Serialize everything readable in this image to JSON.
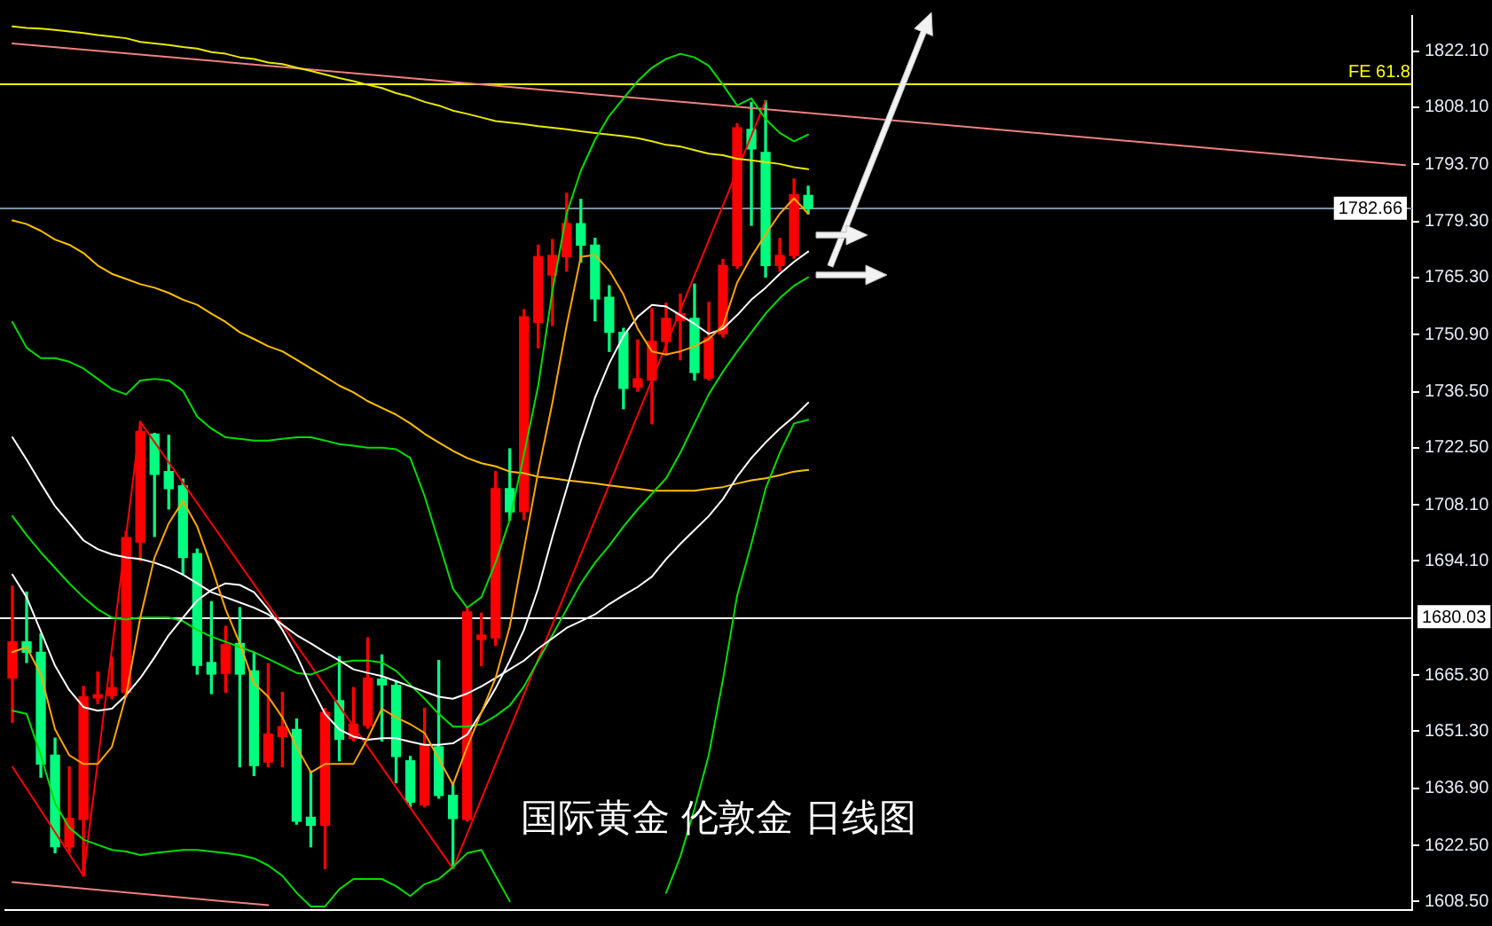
{
  "chart_data": {
    "type": "candlestick",
    "title": "国际黄金 伦敦金 日线图",
    "categories": [
      null,
      null,
      null,
      null,
      null,
      null,
      null,
      null,
      null,
      null,
      null,
      null,
      null,
      null,
      null,
      null,
      null,
      null,
      null,
      null,
      null,
      null,
      null,
      null,
      null,
      null,
      null,
      null,
      null,
      null,
      null,
      null,
      null,
      null,
      null,
      null,
      null,
      null,
      null,
      null,
      null,
      null,
      null,
      null,
      null,
      null,
      null,
      null,
      null,
      null,
      null,
      null,
      null,
      null,
      null,
      null,
      null,
      null,
      null,
      null,
      null,
      null,
      null,
      null,
      null,
      null,
      null,
      null,
      null,
      null,
      null,
      null,
      null,
      null,
      null,
      null,
      null,
      null,
      null,
      null,
      null,
      null,
      null,
      null,
      null,
      null,
      null,
      null,
      null,
      null,
      null,
      null,
      null,
      null,
      null,
      null,
      null,
      null,
      null
    ],
    "ohlc": [
      [
        1664.6,
        1687.7,
        1653.5,
        1673.7
      ],
      [
        1673.7,
        1686.2,
        1668.5,
        1671.1
      ],
      [
        1671.1,
        1675.7,
        1639.7,
        1643.0
      ],
      [
        1645.2,
        1649.5,
        1620.7,
        1622.2
      ],
      [
        1622.2,
        1642.3,
        1620.7,
        1629.3
      ],
      [
        1629.1,
        1662.5,
        1614.9,
        1659.9
      ],
      [
        1659.6,
        1666.1,
        1658.2,
        1660.4
      ],
      [
        1660.2,
        1669.8,
        1659.4,
        1662.2
      ],
      [
        1661.0,
        1701.4,
        1659.9,
        1699.9
      ],
      [
        1698.8,
        1729.0,
        1694.1,
        1726.6
      ],
      [
        1725.9,
        1726.1,
        1700.2,
        1715.8
      ],
      [
        1716.5,
        1725.6,
        1707.1,
        1712.2
      ],
      [
        1712.9,
        1714.6,
        1690.6,
        1694.9
      ],
      [
        1695.9,
        1697.0,
        1665.6,
        1667.8
      ],
      [
        1668.5,
        1683.8,
        1660.7,
        1665.6
      ],
      [
        1665.8,
        1677.6,
        1661.0,
        1673.0
      ],
      [
        1673.3,
        1682.3,
        1642.3,
        1665.6
      ],
      [
        1666.4,
        1671.1,
        1640.1,
        1642.6
      ],
      [
        1643.5,
        1668.2,
        1642.3,
        1650.5
      ],
      [
        1649.9,
        1661.0,
        1642.3,
        1652.4
      ],
      [
        1651.7,
        1654.3,
        1627.9,
        1628.6
      ],
      [
        1629.6,
        1641.2,
        1622.2,
        1627.6
      ],
      [
        1627.6,
        1657.0,
        1616.7,
        1656.0
      ],
      [
        1658.9,
        1670.0,
        1643.8,
        1649.2
      ],
      [
        1649.5,
        1662.2,
        1648.8,
        1653.0
      ],
      [
        1652.7,
        1674.7,
        1652.0,
        1664.6
      ],
      [
        1664.3,
        1670.4,
        1648.8,
        1662.9
      ],
      [
        1662.8,
        1663.9,
        1638.3,
        1644.9
      ],
      [
        1643.8,
        1644.9,
        1632.2,
        1633.4
      ],
      [
        1632.7,
        1657.0,
        1632.2,
        1647.8
      ],
      [
        1647.3,
        1669.0,
        1634.4,
        1635.1
      ],
      [
        1635.1,
        1638.0,
        1616.7,
        1629.3
      ],
      [
        1629.1,
        1682.3,
        1628.6,
        1681.2
      ],
      [
        1674.3,
        1680.9,
        1667.7,
        1675.4
      ],
      [
        1674.7,
        1716.5,
        1672.8,
        1712.2
      ],
      [
        1712.2,
        1722.2,
        1704.3,
        1706.4
      ],
      [
        1706.4,
        1757.2,
        1704.4,
        1755.4
      ],
      [
        1754.0,
        1773.4,
        1747.6,
        1770.5
      ],
      [
        1765.9,
        1774.8,
        1753.2,
        1770.8
      ],
      [
        1770.5,
        1786.4,
        1766.9,
        1778.8
      ],
      [
        1778.8,
        1784.9,
        1769.1,
        1773.4
      ],
      [
        1773.4,
        1775.1,
        1754.4,
        1759.9
      ],
      [
        1760.3,
        1763.2,
        1746.7,
        1751.5
      ],
      [
        1751.5,
        1752.5,
        1732.3,
        1737.4
      ],
      [
        1737.7,
        1749.6,
        1736.7,
        1739.8
      ],
      [
        1739.5,
        1757.5,
        1728.5,
        1749.2
      ],
      [
        1749.2,
        1758.8,
        1746.0,
        1755.0
      ],
      [
        1754.5,
        1761.1,
        1744.6,
        1756.2
      ],
      [
        1755.0,
        1763.6,
        1739.5,
        1741.4
      ],
      [
        1740.0,
        1759.0,
        1739.5,
        1750.1
      ],
      [
        1751.1,
        1769.8,
        1750.3,
        1768.3
      ],
      [
        1768.3,
        1803.9,
        1767.6,
        1802.9
      ],
      [
        1802.5,
        1809.3,
        1778.4,
        1797.6
      ],
      [
        1796.7,
        1809.7,
        1765.4,
        1768.3
      ],
      [
        1768.3,
        1775.1,
        1766.9,
        1770.8
      ],
      [
        1770.8,
        1790.0,
        1770.1,
        1786.1
      ],
      [
        1785.9,
        1788.2,
        1781.3,
        1782.66
      ],
      null,
      null,
      null,
      null,
      null,
      null,
      null,
      null,
      null,
      null,
      null,
      null,
      null,
      null,
      null,
      null,
      null,
      null,
      null,
      null,
      null,
      null,
      null,
      null,
      null,
      null,
      null,
      null,
      null,
      null,
      null,
      null,
      null,
      null,
      null,
      null,
      null,
      null,
      null,
      null,
      null,
      null
    ],
    "colors": [
      "#ff0000",
      "#00ff7f",
      "#00ff7f",
      "#00ff7f",
      "#ff0000",
      "#ff0000",
      "#ff0000",
      "#ff0000",
      "#ff0000",
      "#ff0000",
      "#00ff7f",
      "#00ff7f",
      "#00ff7f",
      "#00ff7f",
      "#00ff7f",
      "#ff0000",
      "#00ff7f",
      "#00ff7f",
      "#ff0000",
      "#ff0000",
      "#00ff7f",
      "#00ff7f",
      "#ff0000",
      "#00ff7f",
      "#ff0000",
      "#ff0000",
      "#00ff7f",
      "#00ff7f",
      "#00ff7f",
      "#ff0000",
      "#00ff7f",
      "#00ff7f",
      "#ff0000",
      "#ff0000",
      "#ff0000",
      "#00ff7f",
      "#ff0000",
      "#ff0000",
      "#ff0000",
      "#ff0000",
      "#00ff7f",
      "#00ff7f",
      "#00ff7f",
      "#00ff7f",
      "#ff0000",
      "#ff0000",
      "#ff0000",
      "#ff0000",
      "#00ff7f",
      "#ff0000",
      "#ff0000",
      "#ff0000",
      "#00ff7f",
      "#00ff7f",
      "#ff0000",
      "#ff0000",
      "#00ff7f",
      null,
      null,
      null,
      null,
      null,
      null,
      null,
      null,
      null,
      null,
      null,
      null,
      null,
      null,
      null,
      null,
      null,
      null,
      null,
      null,
      null,
      null,
      null,
      null,
      null,
      null,
      null,
      null,
      null,
      null,
      null,
      null,
      null,
      null,
      null,
      null,
      null,
      null,
      null,
      null,
      null,
      null
    ],
    "series": [
      {
        "type": "line",
        "color": "#ffa500",
        "values": [
          1671.1,
          1672.4,
          1665.5,
          1651.7,
          1645.2,
          1643.0,
          1643.0,
          1647.3,
          1660.3,
          1679.8,
          1694.9,
          1703.5,
          1709.1,
          1702.7,
          1692.7,
          1681.9,
          1673.3,
          1663.3,
          1659.9,
          1654.7,
          1647.3,
          1640.9,
          1643.0,
          1643.0,
          1643.0,
          1649.5,
          1656.9,
          1654.7,
          1653.0,
          1650.8,
          1644.3,
          1637.8,
          1647.3,
          1656.0,
          1664.6,
          1677.6,
          1697.0,
          1716.5,
          1733.8,
          1753.2,
          1770.5,
          1770.9,
          1767.0,
          1761.0,
          1752.4,
          1746.7,
          1745.9,
          1746.7,
          1748.0,
          1749.8,
          1753.2,
          1764.0,
          1770.5,
          1776.1,
          1781.3,
          1785.2,
          1781.3,
          null,
          null,
          null,
          null,
          null,
          null,
          null,
          null,
          null,
          null,
          null,
          null,
          null,
          null,
          null,
          null,
          null,
          null,
          null,
          null,
          null,
          null,
          null,
          null,
          null,
          null,
          null,
          null,
          null,
          null,
          null,
          null,
          null,
          null,
          null,
          null,
          null,
          null,
          null,
          null,
          null,
          null
        ]
      },
      {
        "type": "line",
        "color": "#ffffff",
        "values": [
          1690.6,
          1684.9,
          1676.3,
          1667.7,
          1661.6,
          1657.3,
          1656.4,
          1656.9,
          1660.3,
          1664.6,
          1669.8,
          1675.4,
          1679.8,
          1684.1,
          1686.7,
          1688.4,
          1688.0,
          1686.2,
          1681.9,
          1676.7,
          1670.3,
          1662.5,
          1655.6,
          1651.7,
          1649.9,
          1649.1,
          1649.5,
          1649.5,
          1648.6,
          1647.8,
          1647.8,
          1648.2,
          1650.4,
          1656.0,
          1662.0,
          1669.0,
          1676.7,
          1687.1,
          1700.1,
          1712.2,
          1724.3,
          1735.1,
          1743.7,
          1750.6,
          1755.4,
          1758.4,
          1758.0,
          1755.8,
          1753.6,
          1751.1,
          1752.4,
          1755.8,
          1759.7,
          1762.7,
          1766.2,
          1769.2,
          1771.8,
          null,
          null,
          null,
          null,
          null,
          null,
          null,
          null,
          null,
          null,
          null,
          null,
          null,
          null,
          null,
          null,
          null,
          null,
          null,
          null,
          null,
          null,
          null,
          null,
          null,
          null,
          null,
          null,
          null,
          null,
          null,
          null,
          null,
          null,
          null,
          null,
          null,
          null,
          null,
          null,
          null,
          null
        ]
      },
      {
        "type": "line",
        "color": "#ffffff",
        "values": [
          1725.1,
          1719.5,
          1713.5,
          1707.8,
          1703.5,
          1699.2,
          1697.0,
          1695.7,
          1694.9,
          1694.5,
          1693.6,
          1692.3,
          1690.6,
          1688.4,
          1686.2,
          1684.9,
          1683.6,
          1682.3,
          1680.6,
          1678.0,
          1675.4,
          1673.3,
          1671.1,
          1669.0,
          1666.8,
          1665.9,
          1665.1,
          1663.8,
          1662.5,
          1661.2,
          1659.9,
          1659.4,
          1660.7,
          1662.5,
          1664.6,
          1666.8,
          1669.0,
          1672.0,
          1674.6,
          1677.2,
          1678.9,
          1680.6,
          1683.2,
          1685.4,
          1687.5,
          1690.1,
          1694.5,
          1698.3,
          1701.8,
          1705.3,
          1709.6,
          1715.2,
          1719.9,
          1723.8,
          1727.3,
          1730.3,
          1733.8,
          null,
          null,
          null,
          null,
          null,
          null,
          null,
          null,
          null,
          null,
          null,
          null,
          null,
          null,
          null,
          null,
          null,
          null,
          null,
          null,
          null,
          null,
          null,
          null,
          null,
          null,
          null,
          null,
          null,
          null,
          null,
          null,
          null,
          null,
          null,
          null,
          null,
          null,
          null,
          null,
          null,
          null
        ]
      },
      {
        "type": "line",
        "color": "#00dd00",
        "values": [
          1754.1,
          1747.6,
          1745.0,
          1745.0,
          1744.1,
          1742.4,
          1739.8,
          1737.2,
          1735.9,
          1739.4,
          1739.8,
          1739.4,
          1736.8,
          1730.3,
          1727.3,
          1725.1,
          1724.7,
          1724.3,
          1724.3,
          1724.7,
          1725.1,
          1725.1,
          1724.3,
          1723.4,
          1723.0,
          1722.5,
          1722.5,
          1722.1,
          1719.9,
          1710.4,
          1698.8,
          1687.1,
          1682.3,
          1684.9,
          1693.6,
          1704.4,
          1720.8,
          1738.1,
          1761.9,
          1781.3,
          1792.1,
          1799.9,
          1805.9,
          1810.3,
          1814.6,
          1818.0,
          1820.2,
          1821.5,
          1820.6,
          1818.5,
          1813.7,
          1808.5,
          1810.3,
          1805.1,
          1801.6,
          1799.5,
          1801.2,
          null,
          null,
          null,
          null,
          null,
          null,
          null,
          null,
          null,
          null,
          null,
          null,
          null,
          null,
          null,
          null,
          null,
          null,
          null,
          null,
          null,
          null,
          null,
          null,
          null,
          null,
          null,
          null,
          null,
          null,
          null,
          null,
          null,
          null,
          null,
          null,
          null,
          null,
          null,
          null,
          null,
          null
        ]
      },
      {
        "type": "line",
        "color": "#00dd00",
        "values": [
          1705.3,
          1700.5,
          1696.2,
          1692.3,
          1688.4,
          1684.9,
          1681.9,
          1679.8,
          1679.3,
          1679.8,
          1679.8,
          1679.8,
          1678.9,
          1676.7,
          1675.0,
          1673.7,
          1672.4,
          1671.1,
          1669.4,
          1667.7,
          1665.9,
          1665.5,
          1666.8,
          1668.5,
          1669.0,
          1669.0,
          1668.5,
          1666.4,
          1662.9,
          1659.4,
          1655.6,
          1652.4,
          1652.4,
          1653.0,
          1655.1,
          1657.7,
          1662.5,
          1669.0,
          1675.4,
          1681.9,
          1688.4,
          1693.6,
          1697.9,
          1702.7,
          1707.0,
          1710.9,
          1714.8,
          1721.2,
          1728.6,
          1735.9,
          1741.6,
          1746.7,
          1751.5,
          1756.2,
          1760.1,
          1763.2,
          1765.3,
          null,
          null,
          null,
          null,
          null,
          null,
          null,
          null,
          null,
          null,
          null,
          null,
          null,
          null,
          null,
          null,
          null,
          null,
          null,
          null,
          null,
          null,
          null,
          null,
          null,
          null,
          null,
          null,
          null,
          null,
          null,
          null,
          null,
          null,
          null,
          null,
          null,
          null,
          null,
          null,
          null,
          null
        ]
      },
      {
        "type": "line",
        "color": "#00dd00",
        "values": [
          1656.4,
          1655.6,
          1645.2,
          1633.1,
          1627.0,
          1624.0,
          1622.7,
          1621.4,
          1621.0,
          1620.1,
          1620.6,
          1621.0,
          1621.4,
          1621.4,
          1621.0,
          1620.6,
          1620.1,
          1619.3,
          1617.5,
          1614.9,
          1610.6,
          1607.2,
          1607.2,
          1611.5,
          1614.1,
          1614.1,
          1614.1,
          1612.3,
          1609.8,
          1612.8,
          1614.1,
          1617.1,
          1620.6,
          1621.4,
          1614.9,
          1608.5,
          null,
          null,
          null,
          null,
          null,
          null,
          null,
          null,
          null,
          null,
          1610.6,
          1619.7,
          1631.8,
          1645.2,
          1664.2,
          1685.4,
          1698.3,
          1712.2,
          1721.2,
          1728.6,
          1729.5,
          null,
          null,
          null,
          null,
          null,
          null,
          null,
          null,
          null,
          null,
          null,
          null,
          null,
          null,
          null,
          null,
          null,
          null,
          null,
          null,
          null,
          null,
          null,
          null,
          null,
          null,
          null,
          null,
          null,
          null,
          null,
          null,
          null,
          null,
          null,
          null,
          null,
          null,
          null,
          null,
          null,
          null
        ]
      },
      {
        "type": "line",
        "color": "#e8e800",
        "values": [
          1828.4,
          1828.0,
          1827.8,
          1827.5,
          1827.1,
          1826.7,
          1826.2,
          1825.8,
          1825.4,
          1824.5,
          1824.1,
          1823.7,
          1823.2,
          1822.8,
          1821.9,
          1821.5,
          1820.6,
          1820.2,
          1819.3,
          1818.9,
          1818.0,
          1817.2,
          1816.3,
          1815.4,
          1814.6,
          1813.7,
          1812.9,
          1811.6,
          1810.7,
          1809.4,
          1808.5,
          1807.2,
          1806.4,
          1805.5,
          1804.6,
          1804.2,
          1803.8,
          1803.3,
          1802.9,
          1802.5,
          1802.0,
          1801.6,
          1801.2,
          1800.8,
          1800.3,
          1799.5,
          1798.6,
          1798.2,
          1797.3,
          1796.4,
          1796.0,
          1795.1,
          1794.7,
          1794.3,
          1793.8,
          1793.0,
          1792.5,
          null,
          null,
          null,
          null,
          null,
          null,
          null,
          null,
          null,
          null,
          null,
          null,
          null,
          null,
          null,
          null,
          null,
          null,
          null,
          null,
          null,
          null,
          null,
          null,
          null,
          null,
          null,
          null,
          null,
          null,
          null,
          null,
          null,
          null,
          null,
          null,
          null,
          null,
          null,
          null,
          null,
          null
        ]
      },
      {
        "type": "line",
        "color": "#ffc000",
        "values": [
          1779.6,
          1778.7,
          1777.0,
          1774.8,
          1773.5,
          1771.4,
          1768.3,
          1766.2,
          1764.9,
          1763.6,
          1762.7,
          1761.4,
          1759.7,
          1758.4,
          1756.2,
          1754.1,
          1751.5,
          1749.8,
          1748.0,
          1746.7,
          1744.6,
          1742.4,
          1740.3,
          1738.1,
          1736.4,
          1734.2,
          1732.5,
          1730.8,
          1728.6,
          1726.0,
          1723.8,
          1721.7,
          1719.9,
          1718.6,
          1717.8,
          1716.5,
          1716.1,
          1715.2,
          1714.8,
          1714.3,
          1713.9,
          1713.5,
          1713.0,
          1712.6,
          1712.2,
          1711.7,
          1711.7,
          1711.7,
          1711.7,
          1712.2,
          1712.6,
          1713.5,
          1714.3,
          1714.8,
          1715.6,
          1716.5,
          1716.9,
          null,
          null,
          null,
          null,
          null,
          null,
          null,
          null,
          null,
          null,
          null,
          null,
          null,
          null,
          null,
          null,
          null,
          null,
          null,
          null,
          null,
          null,
          null,
          null,
          null,
          null,
          null,
          null,
          null,
          null,
          null,
          null,
          null,
          null,
          null,
          null,
          null,
          null,
          null,
          null,
          null,
          null
        ]
      },
      {
        "type": "line",
        "color": "#ff0000",
        "values": [
          1642.3,
          null,
          null,
          null,
          null,
          1614.9,
          null,
          null,
          null,
          1729.0,
          null,
          null,
          null,
          null,
          null,
          null,
          null,
          null,
          null,
          null,
          null,
          null,
          null,
          null,
          null,
          null,
          null,
          null,
          null,
          null,
          null,
          1616.7,
          null,
          null,
          null,
          null,
          null,
          null,
          null,
          null,
          null,
          null,
          null,
          null,
          null,
          null,
          null,
          null,
          null,
          null,
          null,
          null,
          null,
          1809.7,
          null,
          null,
          null,
          null,
          null,
          null,
          null,
          null,
          null,
          null,
          null,
          null,
          null,
          null,
          null,
          null,
          null,
          null,
          null,
          null,
          null,
          null,
          null,
          null,
          null,
          null,
          null,
          null,
          null,
          null,
          null,
          null,
          null,
          null,
          null,
          null,
          null,
          null,
          null,
          null,
          null,
          null,
          null,
          null,
          null
        ]
      },
      {
        "type": "line",
        "color": "#f08080",
        "values": [
          1824.1,
          null,
          null,
          null,
          null,
          null,
          null,
          null,
          null,
          null,
          null,
          null,
          null,
          null,
          null,
          null,
          null,
          null,
          null,
          null,
          null,
          null,
          null,
          null,
          null,
          null,
          null,
          null,
          null,
          null,
          null,
          null,
          null,
          null,
          null,
          null,
          null,
          null,
          null,
          null,
          null,
          null,
          null,
          null,
          null,
          null,
          null,
          null,
          null,
          null,
          null,
          null,
          null,
          null,
          null,
          null,
          null,
          null,
          null,
          null,
          null,
          null,
          null,
          null,
          null,
          null,
          null,
          null,
          null,
          null,
          null,
          null,
          null,
          null,
          null,
          null,
          null,
          null,
          null,
          null,
          null,
          null,
          null,
          null,
          null,
          null,
          null,
          null,
          null,
          null,
          null,
          null,
          null,
          null,
          null,
          null,
          null,
          null,
          1793.5
        ]
      },
      {
        "type": "line",
        "color": "#f08080",
        "values": [
          1613.3,
          null,
          null,
          null,
          null,
          null,
          null,
          null,
          null,
          null,
          null,
          null,
          null,
          null,
          null,
          null,
          null,
          null,
          1607.5,
          null,
          null,
          null,
          null,
          null,
          null,
          null,
          null,
          null,
          null,
          null,
          null,
          null,
          null,
          null,
          null,
          null,
          null,
          null,
          null,
          null,
          null,
          null,
          null,
          null,
          null,
          null,
          null,
          null,
          null,
          null,
          null,
          null,
          null,
          null,
          null,
          null,
          null,
          null,
          null,
          null,
          null,
          null,
          null,
          null,
          null,
          null,
          null,
          null,
          null,
          null,
          null,
          null,
          null,
          null,
          null,
          null,
          null,
          null,
          null,
          null,
          null,
          null,
          null,
          null,
          null,
          null,
          null,
          null,
          null,
          null,
          null,
          null,
          null,
          null,
          null,
          null,
          null,
          null,
          null
        ]
      }
    ],
    "ylim": [
      1606.3,
      1831.0
    ],
    "yticks": [
      {
        "value": 1608.5,
        "label": "1608.50"
      },
      {
        "value": 1622.5,
        "label": "1622.50"
      },
      {
        "value": 1636.9,
        "label": "1636.90"
      },
      {
        "value": 1651.3,
        "label": "1651.30"
      },
      {
        "value": 1665.3,
        "label": "1665.30"
      },
      {
        "value": 1694.1,
        "label": "1694.10"
      },
      {
        "value": 1708.1,
        "label": "1708.10"
      },
      {
        "value": 1722.5,
        "label": "1722.50"
      },
      {
        "value": 1736.5,
        "label": "1736.50"
      },
      {
        "value": 1750.9,
        "label": "1750.90"
      },
      {
        "value": 1765.3,
        "label": "1765.30"
      },
      {
        "value": 1779.3,
        "label": "1779.30"
      },
      {
        "value": 1793.7,
        "label": "1793.70"
      },
      {
        "value": 1808.1,
        "label": "1808.10"
      },
      {
        "value": 1822.1,
        "label": "1822.10"
      }
    ],
    "ref_lines": [
      {
        "axis": "y",
        "value": 1814.1,
        "color": "#ffff00"
      },
      {
        "axis": "y",
        "value": 1782.66,
        "label": "1782.66",
        "color": "#7d8fa3"
      },
      {
        "axis": "y",
        "value": 1680.03,
        "label": "1680.03",
        "color": "#ffffff"
      }
    ],
    "annotations": [
      {
        "text": "FE 61.8",
        "y": 1814.1
      }
    ],
    "tick_labels": "y"
  }
}
